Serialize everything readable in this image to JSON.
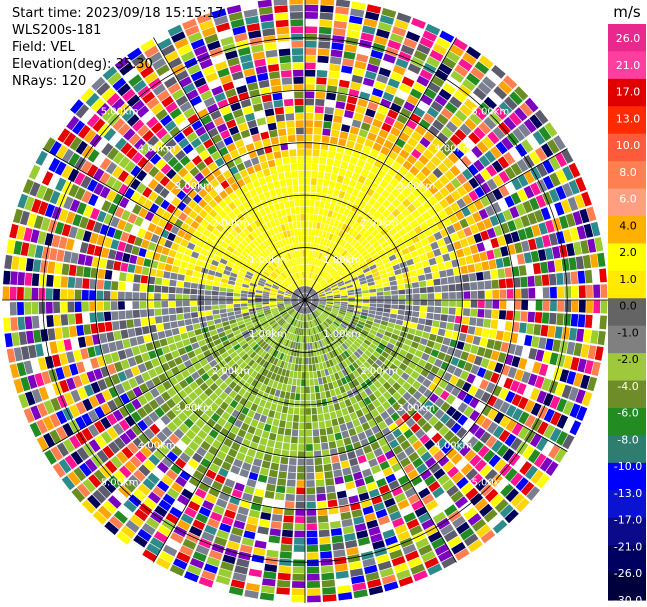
{
  "header": {
    "start_time": "Start time: 2023/09/18 15:15:17",
    "instrument": "WLS200s-181",
    "field": "Field: VEL",
    "elevation": "Elevation(deg): 35.30",
    "nrays": "NRays: 120"
  },
  "chart_data": {
    "type": "heatmap",
    "projection": "polar-ppi",
    "field": "VEL",
    "units": "m/s",
    "elevation_deg": 35.3,
    "n_rays": 120,
    "range_rings_km": [
      1.0,
      2.0,
      3.0,
      4.0,
      5.0
    ],
    "range_ring_labels": [
      "1.00km",
      "2.00km",
      "3.00km",
      "4.00km",
      "5.00km"
    ],
    "max_range_km": 5.2,
    "colorbar": {
      "label": "m/s",
      "ticks": [
        "26.0",
        "21.0",
        "17.0",
        "13.0",
        "10.0",
        "8.0",
        "6.0",
        "4.0",
        "2.0",
        "1.0",
        "0.0",
        "-1.0",
        "-2.0",
        "-4.0",
        "-6.0",
        "-8.0",
        "-10.0",
        "-13.0",
        "-17.0",
        "-21.0",
        "-26.0",
        "-30.0"
      ],
      "colors": [
        "#e8288c",
        "#ff3f9f",
        "#e00000",
        "#ff2a00",
        "#ff5a3c",
        "#ff7f50",
        "#ff9f80",
        "#ffb000",
        "#ffff00",
        "#ffea00",
        "#646464",
        "#808080",
        "#a0c83c",
        "#6e8c28",
        "#228b22",
        "#2e7d6e",
        "#0000ff",
        "#0a14d0",
        "#0a0a8a",
        "#000060",
        "#00003c"
      ],
      "value_range": [
        -30,
        26
      ]
    },
    "palette_categories": [
      {
        "name": "yellow",
        "color": "#ffff00"
      },
      {
        "name": "gold",
        "color": "#ffd700"
      },
      {
        "name": "orange",
        "color": "#ffa500"
      },
      {
        "name": "gray",
        "color": "#7a8090"
      },
      {
        "name": "dark-gray",
        "color": "#5c5c6c"
      },
      {
        "name": "yellowgreen",
        "color": "#9acd32"
      },
      {
        "name": "olive",
        "color": "#6b8e23"
      },
      {
        "name": "green",
        "color": "#228b22"
      },
      {
        "name": "red",
        "color": "#e60000"
      },
      {
        "name": "pink",
        "color": "#ff1493"
      },
      {
        "name": "blue",
        "color": "#0000ff"
      },
      {
        "name": "navy",
        "color": "#00005a"
      },
      {
        "name": "teal",
        "color": "#2e8b8b"
      },
      {
        "name": "purple",
        "color": "#7b00c0"
      },
      {
        "name": "salmon",
        "color": "#ff7f50"
      },
      {
        "name": "white",
        "color": "#ffffff"
      }
    ],
    "sectors": [
      {
        "region": "near-north (0–1.4 km, az 300–60)",
        "dominant": "yellow",
        "approx_value": 2.0
      },
      {
        "region": "north (1.4–3.2 km, az 300–60)",
        "dominant": "yellow",
        "approx_value": 2.0
      },
      {
        "region": "east-west inner band",
        "dominant": "gray",
        "approx_value": 0.0
      },
      {
        "region": "south (0.5–3.0 km, az 120–240)",
        "dominant": "yellowgreen/olive",
        "approx_value": -2.0
      },
      {
        "region": "outer ring (>3.2 km)",
        "dominant": "noise (random colors)",
        "approx_value": null
      }
    ],
    "grid": true
  }
}
